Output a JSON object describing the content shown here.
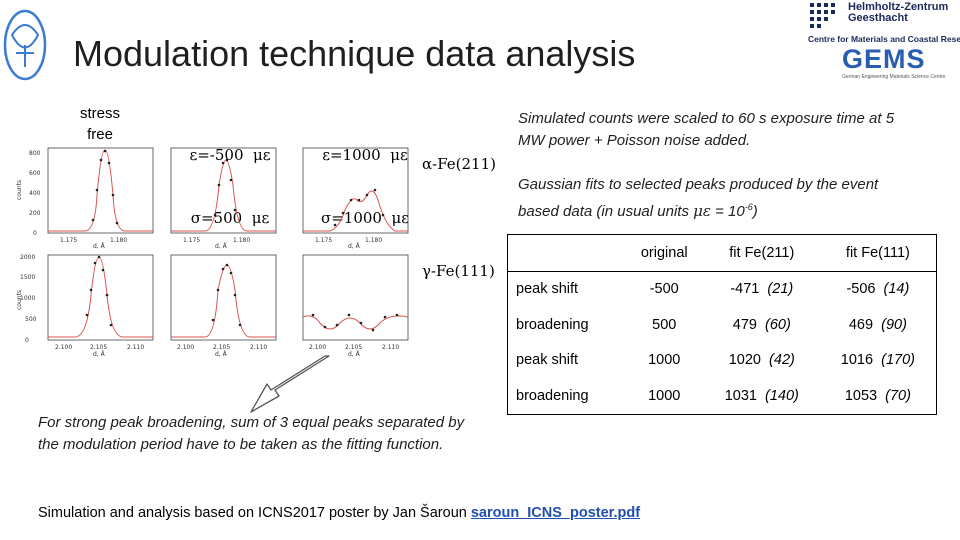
{
  "slide": {
    "title": "Modulation technique data analysis",
    "logos": {
      "hzg_lines": [
        "Helmholtz-Zentrum",
        "Geesthacht"
      ],
      "hzg_sub": "Centre for Materials and Coastal Research",
      "gems_word": "GEMS",
      "gems_tag": "German Engineering Materials Science Centre"
    },
    "column_labels": {
      "stress_free": "stress\nfree",
      "col2_line1": "ε=-500  με",
      "col2_line2": "σ=500  με",
      "col3_line1": "ε=1000  με",
      "col3_line2": "σ=1000  με"
    },
    "phase_labels": {
      "alpha": "α-Fe(211)",
      "gamma": "γ-Fe(111)"
    },
    "notes": {
      "simulated": "Simulated counts were scaled to 60 s exposure time at 5 MW power + Poisson noise added.",
      "gaussian_prefix": "Gaussian fits to selected peaks produced by the event based data (in usual units ",
      "gaussian_unit": "με",
      "gaussian_mid": " = 10",
      "gaussian_exp": "-6",
      "gaussian_suffix": ")",
      "broadening": "For strong peak broadening, sum of 3 equal peaks separated by the modulation period have to be taken as the fitting function."
    },
    "footer": {
      "text": "Simulation and analysis based on ICNS2017 poster by Jan Šaroun ",
      "link": "saroun_ICNS_poster.pdf"
    },
    "axes": {
      "ylabel": "counts",
      "xlabel": "d, Å",
      "row1_yticks": [
        "0",
        "200",
        "400",
        "600",
        "800"
      ],
      "row1_yticks_b": [
        "0",
        "500",
        "1000",
        "1500",
        "2000"
      ],
      "row1_xticks": [
        "1.175",
        "1.180"
      ],
      "row2_yticks": [
        "0",
        "500",
        "1000",
        "1500",
        "2000"
      ],
      "row2_xticks": [
        "2.100",
        "2.105",
        "2.110"
      ]
    },
    "table": {
      "headers": [
        "",
        "original",
        "fit Fe(211)",
        "fit Fe(111)"
      ],
      "rows": [
        {
          "label": "peak shift",
          "original": "-500",
          "fit211": "-471",
          "fit211_err": "(21)",
          "fit111": "-506",
          "fit111_err": "(14)"
        },
        {
          "label": "broadening",
          "original": "500",
          "fit211": "479",
          "fit211_err": "(60)",
          "fit111": "469",
          "fit111_err": "(90)"
        },
        {
          "label": "peak shift",
          "original": "1000",
          "fit211": "1020",
          "fit211_err": "(42)",
          "fit111": "1016",
          "fit111_err": "(170)"
        },
        {
          "label": "broadening",
          "original": "1000",
          "fit211": "1031",
          "fit211_err": "(140)",
          "fit111": "1053",
          "fit111_err": "(70)"
        }
      ]
    }
  }
}
